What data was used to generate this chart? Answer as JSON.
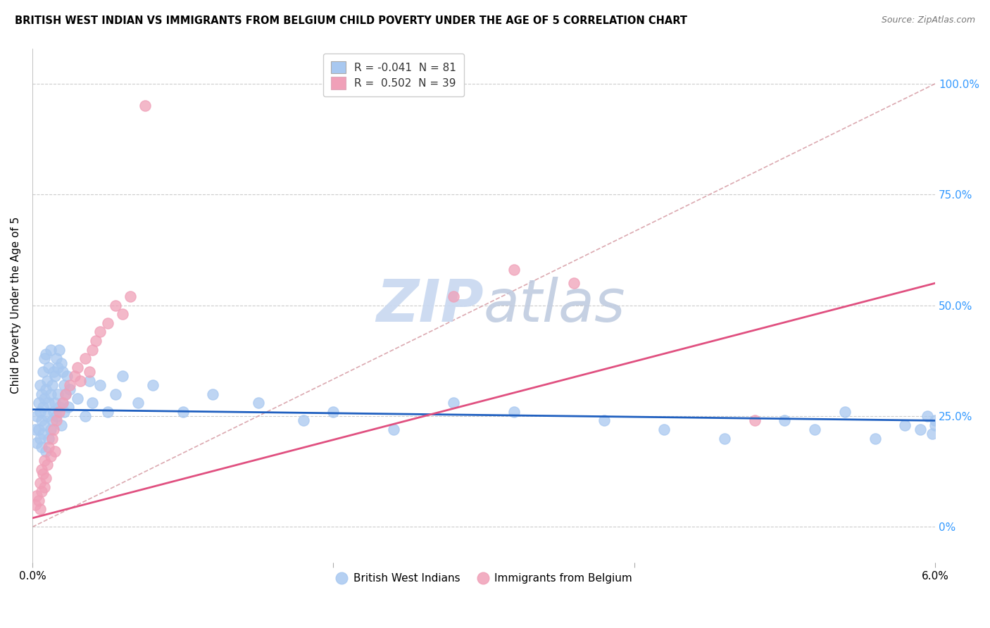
{
  "title": "BRITISH WEST INDIAN VS IMMIGRANTS FROM BELGIUM CHILD POVERTY UNDER THE AGE OF 5 CORRELATION CHART",
  "source": "Source: ZipAtlas.com",
  "ylabel": "Child Poverty Under the Age of 5",
  "legend1_label": "R = -0.041  N = 81",
  "legend2_label": "R =  0.502  N = 39",
  "legend_group1": "British West Indians",
  "legend_group2": "Immigrants from Belgium",
  "blue_color": "#a8c8f0",
  "pink_color": "#f0a0b8",
  "blue_line_color": "#2060c0",
  "pink_line_color": "#e05080",
  "ref_line_color": "#d8a0a8",
  "watermark_color": "#c8d8f0",
  "xmin": 0.0,
  "xmax": 0.06,
  "ymin": -0.08,
  "ymax": 1.08,
  "blue_x": [
    0.0002,
    0.0003,
    0.0003,
    0.0004,
    0.0004,
    0.0005,
    0.0005,
    0.0005,
    0.0006,
    0.0006,
    0.0006,
    0.0007,
    0.0007,
    0.0007,
    0.0008,
    0.0008,
    0.0008,
    0.0009,
    0.0009,
    0.0009,
    0.001,
    0.001,
    0.0011,
    0.0011,
    0.0011,
    0.0012,
    0.0012,
    0.0012,
    0.0013,
    0.0013,
    0.0014,
    0.0014,
    0.0015,
    0.0015,
    0.0016,
    0.0016,
    0.0017,
    0.0017,
    0.0018,
    0.0018,
    0.0019,
    0.0019,
    0.002,
    0.002,
    0.0021,
    0.0021,
    0.0022,
    0.0023,
    0.0024,
    0.0025,
    0.003,
    0.0035,
    0.0038,
    0.004,
    0.0045,
    0.005,
    0.0055,
    0.006,
    0.007,
    0.008,
    0.01,
    0.012,
    0.015,
    0.018,
    0.02,
    0.024,
    0.028,
    0.032,
    0.038,
    0.042,
    0.046,
    0.05,
    0.052,
    0.054,
    0.056,
    0.058,
    0.059,
    0.0595,
    0.0598,
    0.06,
    0.06
  ],
  "blue_y": [
    0.22,
    0.19,
    0.25,
    0.22,
    0.28,
    0.2,
    0.26,
    0.32,
    0.24,
    0.3,
    0.18,
    0.27,
    0.35,
    0.21,
    0.29,
    0.38,
    0.23,
    0.31,
    0.39,
    0.17,
    0.25,
    0.33,
    0.28,
    0.36,
    0.2,
    0.3,
    0.4,
    0.22,
    0.32,
    0.24,
    0.35,
    0.26,
    0.34,
    0.28,
    0.38,
    0.25,
    0.36,
    0.3,
    0.4,
    0.27,
    0.37,
    0.23,
    0.35,
    0.28,
    0.32,
    0.26,
    0.3,
    0.34,
    0.27,
    0.31,
    0.29,
    0.25,
    0.33,
    0.28,
    0.32,
    0.26,
    0.3,
    0.34,
    0.28,
    0.32,
    0.26,
    0.3,
    0.28,
    0.24,
    0.26,
    0.22,
    0.28,
    0.26,
    0.24,
    0.22,
    0.2,
    0.24,
    0.22,
    0.26,
    0.2,
    0.23,
    0.22,
    0.25,
    0.21,
    0.24,
    0.23
  ],
  "pink_x": [
    0.0002,
    0.0003,
    0.0004,
    0.0005,
    0.0005,
    0.0006,
    0.0006,
    0.0007,
    0.0008,
    0.0008,
    0.0009,
    0.001,
    0.0011,
    0.0012,
    0.0013,
    0.0014,
    0.0015,
    0.0016,
    0.0018,
    0.002,
    0.0022,
    0.0025,
    0.0028,
    0.003,
    0.0032,
    0.0035,
    0.0038,
    0.004,
    0.0042,
    0.0045,
    0.005,
    0.0055,
    0.006,
    0.0065,
    0.0075,
    0.028,
    0.032,
    0.036,
    0.048
  ],
  "pink_y": [
    0.05,
    0.07,
    0.06,
    0.1,
    0.04,
    0.08,
    0.13,
    0.12,
    0.09,
    0.15,
    0.11,
    0.14,
    0.18,
    0.16,
    0.2,
    0.22,
    0.17,
    0.24,
    0.26,
    0.28,
    0.3,
    0.32,
    0.34,
    0.36,
    0.33,
    0.38,
    0.35,
    0.4,
    0.42,
    0.44,
    0.46,
    0.5,
    0.48,
    0.52,
    0.95,
    0.52,
    0.58,
    0.55,
    0.24
  ],
  "blue_line_y0": 0.265,
  "blue_line_y1": 0.24,
  "pink_line_y0": 0.02,
  "pink_line_y1": 0.55
}
